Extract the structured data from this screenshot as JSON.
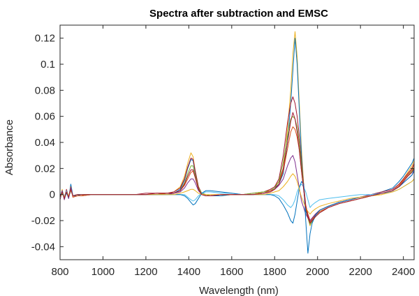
{
  "chart_data": {
    "type": "line",
    "title": "Spectra after subtraction and EMSC",
    "xlabel": "Wavelength (nm)",
    "ylabel": "Absorbance",
    "xlim": [
      800,
      2450
    ],
    "ylim": [
      -0.05,
      0.13
    ],
    "x_ticks": [
      800,
      1000,
      1200,
      1400,
      1600,
      1800,
      2000,
      2200,
      2400
    ],
    "x_tick_labels": [
      "800",
      "1000",
      "1200",
      "1400",
      "1600",
      "1800",
      "2000",
      "2200",
      "2400"
    ],
    "y_ticks": [
      -0.04,
      -0.02,
      0,
      0.02,
      0.04,
      0.06,
      0.08,
      0.1,
      0.12
    ],
    "y_tick_labels": [
      "-0.04",
      "-0.02",
      "0",
      "0.02",
      "0.04",
      "0.06",
      "0.08",
      "0.1",
      "0.12"
    ],
    "grid": false,
    "legend": "none",
    "x": [
      800,
      810,
      820,
      830,
      840,
      850,
      860,
      880,
      900,
      950,
      1000,
      1050,
      1100,
      1150,
      1200,
      1250,
      1300,
      1330,
      1360,
      1380,
      1395,
      1410,
      1420,
      1430,
      1445,
      1460,
      1480,
      1500,
      1550,
      1600,
      1650,
      1700,
      1750,
      1780,
      1800,
      1820,
      1840,
      1860,
      1875,
      1885,
      1895,
      1905,
      1915,
      1925,
      1935,
      1945,
      1955,
      1965,
      1975,
      1990,
      2010,
      2050,
      2100,
      2150,
      2200,
      2250,
      2300,
      2350,
      2380,
      2400,
      2420,
      2440,
      2450
    ],
    "series": [
      {
        "values": [
          -0.003,
          0.004,
          -0.004,
          0.003,
          -0.002,
          0.006,
          -0.002,
          -0.001,
          -0.001,
          0.0,
          0.0,
          0.0,
          0.0,
          0.0,
          0.0,
          0.001,
          0.001,
          0.002,
          0.006,
          0.014,
          0.024,
          0.032,
          0.029,
          0.018,
          0.006,
          0.001,
          0.0,
          -0.001,
          -0.001,
          0.0,
          0.0,
          0.0,
          0.002,
          0.004,
          0.006,
          0.01,
          0.02,
          0.05,
          0.08,
          0.108,
          0.125,
          0.106,
          0.07,
          0.035,
          0.008,
          -0.012,
          -0.018,
          -0.024,
          -0.02,
          -0.016,
          -0.013,
          -0.01,
          -0.007,
          -0.005,
          -0.003,
          -0.001,
          0.0,
          0.003,
          0.007,
          0.012,
          0.017,
          0.022,
          0.026
        ],
        "color": "#EDB120"
      },
      {
        "values": [
          -0.002,
          0.003,
          -0.003,
          0.002,
          -0.003,
          0.008,
          -0.001,
          -0.001,
          0.0,
          0.0,
          0.0,
          0.0,
          0.0,
          0.0,
          0.0,
          0.0,
          0.001,
          0.001,
          0.004,
          0.011,
          0.02,
          0.027,
          0.026,
          0.017,
          0.005,
          0.0,
          -0.001,
          -0.001,
          -0.001,
          0.0,
          0.0,
          0.0,
          0.001,
          0.003,
          0.005,
          0.008,
          0.016,
          0.04,
          0.07,
          0.095,
          0.12,
          0.1,
          0.065,
          0.03,
          0.006,
          -0.013,
          -0.017,
          -0.022,
          -0.019,
          -0.015,
          -0.012,
          -0.009,
          -0.006,
          -0.004,
          -0.002,
          0.0,
          0.002,
          0.005,
          0.01,
          0.014,
          0.019,
          0.024,
          0.028
        ],
        "color": "#0072BD"
      },
      {
        "values": [
          -0.004,
          0.002,
          -0.002,
          0.004,
          -0.002,
          0.005,
          -0.002,
          -0.001,
          -0.001,
          0.0,
          0.0,
          0.0,
          0.0,
          0.0,
          0.001,
          0.001,
          0.001,
          0.002,
          0.005,
          0.012,
          0.021,
          0.028,
          0.027,
          0.018,
          0.006,
          0.001,
          0.0,
          -0.001,
          0.0,
          0.0,
          0.0,
          0.001,
          0.002,
          0.004,
          0.006,
          0.012,
          0.03,
          0.055,
          0.07,
          0.075,
          0.07,
          0.06,
          0.045,
          0.025,
          0.008,
          -0.008,
          -0.015,
          -0.02,
          -0.018,
          -0.015,
          -0.012,
          -0.009,
          -0.006,
          -0.004,
          -0.002,
          0.0,
          0.002,
          0.004,
          0.008,
          0.012,
          0.016,
          0.02,
          0.024
        ],
        "color": "#A2142F"
      },
      {
        "values": [
          -0.002,
          0.001,
          -0.003,
          0.002,
          -0.001,
          0.004,
          -0.001,
          0.0,
          0.0,
          0.0,
          0.0,
          0.0,
          0.0,
          0.0,
          0.0,
          0.0,
          0.001,
          0.001,
          0.003,
          0.009,
          0.016,
          0.022,
          0.022,
          0.015,
          0.005,
          0.001,
          0.0,
          -0.001,
          0.0,
          0.0,
          0.0,
          0.001,
          0.002,
          0.003,
          0.005,
          0.01,
          0.025,
          0.045,
          0.058,
          0.06,
          0.058,
          0.052,
          0.04,
          0.022,
          0.006,
          -0.01,
          -0.018,
          -0.023,
          -0.021,
          -0.017,
          -0.014,
          -0.01,
          -0.007,
          -0.005,
          -0.003,
          -0.001,
          0.001,
          0.003,
          0.006,
          0.01,
          0.014,
          0.018,
          0.021
        ],
        "color": "#77AC30"
      },
      {
        "values": [
          -0.003,
          0.002,
          -0.002,
          0.003,
          -0.002,
          0.006,
          -0.002,
          -0.001,
          -0.001,
          0.0,
          0.0,
          0.0,
          0.0,
          0.0,
          0.0,
          0.0,
          0.001,
          0.001,
          0.003,
          0.007,
          0.012,
          0.017,
          0.018,
          0.013,
          0.004,
          0.0,
          -0.001,
          -0.001,
          0.0,
          0.0,
          0.0,
          0.0,
          0.001,
          0.003,
          0.004,
          0.008,
          0.018,
          0.035,
          0.048,
          0.052,
          0.05,
          0.044,
          0.034,
          0.018,
          0.004,
          -0.009,
          -0.016,
          -0.021,
          -0.019,
          -0.016,
          -0.013,
          -0.01,
          -0.007,
          -0.005,
          -0.003,
          -0.001,
          0.001,
          0.003,
          0.007,
          0.011,
          0.015,
          0.019,
          0.023
        ],
        "color": "#D95319"
      },
      {
        "values": [
          -0.002,
          0.003,
          -0.004,
          0.002,
          -0.003,
          0.005,
          -0.001,
          0.0,
          0.0,
          0.0,
          0.0,
          0.0,
          0.0,
          0.0,
          0.0,
          0.0,
          0.0,
          0.001,
          0.002,
          0.005,
          0.009,
          0.012,
          0.012,
          0.009,
          0.003,
          0.0,
          -0.001,
          -0.001,
          0.0,
          0.0,
          0.0,
          0.0,
          0.001,
          0.002,
          0.004,
          0.007,
          0.012,
          0.022,
          0.028,
          0.03,
          0.025,
          0.015,
          0.005,
          -0.005,
          -0.01,
          -0.015,
          -0.018,
          -0.02,
          -0.018,
          -0.015,
          -0.012,
          -0.009,
          -0.006,
          -0.004,
          -0.002,
          0.0,
          0.001,
          0.003,
          0.006,
          0.009,
          0.012,
          0.015,
          0.018
        ],
        "color": "#7E2F8E"
      },
      {
        "values": [
          -0.003,
          0.002,
          -0.002,
          0.003,
          -0.002,
          0.004,
          -0.001,
          0.0,
          0.0,
          0.0,
          0.0,
          0.0,
          0.0,
          0.0,
          0.0,
          0.0,
          0.0,
          0.0,
          0.0,
          0.0,
          -0.002,
          -0.004,
          -0.005,
          -0.004,
          -0.001,
          0.001,
          0.002,
          0.002,
          0.001,
          0.001,
          0.0,
          0.0,
          0.0,
          0.0,
          0.0,
          -0.001,
          -0.004,
          -0.008,
          -0.01,
          -0.008,
          -0.004,
          0.002,
          0.006,
          0.008,
          0.006,
          0.002,
          -0.004,
          -0.01,
          -0.008,
          -0.006,
          -0.004,
          -0.003,
          -0.002,
          -0.001,
          0.0,
          0.0,
          0.001,
          0.002,
          0.004,
          0.006,
          0.008,
          0.01,
          0.012
        ],
        "color": "#4DBEEE"
      },
      {
        "values": [
          -0.001,
          0.002,
          -0.003,
          0.001,
          -0.002,
          0.003,
          -0.001,
          0.0,
          0.0,
          0.0,
          0.0,
          0.0,
          0.0,
          0.0,
          0.0,
          0.0,
          0.0,
          0.0,
          0.0,
          -0.001,
          -0.003,
          -0.006,
          -0.008,
          -0.007,
          -0.003,
          0.001,
          0.003,
          0.003,
          0.002,
          0.001,
          0.0,
          0.0,
          0.0,
          0.0,
          -0.001,
          -0.003,
          -0.008,
          -0.014,
          -0.02,
          -0.022,
          -0.015,
          -0.005,
          0.005,
          0.01,
          0.008,
          -0.02,
          -0.045,
          -0.03,
          -0.022,
          -0.016,
          -0.012,
          -0.009,
          -0.006,
          -0.004,
          -0.002,
          -0.001,
          0.001,
          0.003,
          0.006,
          0.009,
          0.012,
          0.015,
          0.019
        ],
        "color": "#0072BD"
      },
      {
        "values": [
          -0.002,
          0.001,
          -0.002,
          0.002,
          -0.001,
          0.003,
          -0.001,
          0.0,
          0.0,
          0.0,
          0.0,
          0.0,
          0.0,
          0.0,
          0.0,
          0.0,
          0.0,
          0.0,
          0.001,
          0.002,
          0.003,
          0.004,
          0.004,
          0.003,
          0.001,
          0.0,
          0.0,
          0.0,
          0.0,
          0.0,
          0.0,
          0.0,
          0.0,
          0.001,
          0.002,
          0.003,
          0.006,
          0.01,
          0.014,
          0.016,
          0.014,
          0.01,
          0.004,
          -0.002,
          -0.006,
          -0.01,
          -0.013,
          -0.015,
          -0.013,
          -0.011,
          -0.009,
          -0.007,
          -0.005,
          -0.003,
          -0.002,
          -0.001,
          0.0,
          0.002,
          0.004,
          0.006,
          0.008,
          0.01,
          0.012
        ],
        "color": "#EDB120"
      },
      {
        "values": [
          -0.002,
          0.002,
          -0.003,
          0.002,
          -0.002,
          0.004,
          -0.001,
          0.0,
          0.0,
          0.0,
          0.0,
          0.0,
          0.0,
          0.0,
          0.0,
          0.001,
          0.001,
          0.001,
          0.003,
          0.008,
          0.014,
          0.019,
          0.019,
          0.013,
          0.004,
          0.0,
          -0.001,
          -0.001,
          0.0,
          0.0,
          0.0,
          0.0,
          0.001,
          0.002,
          0.004,
          0.008,
          0.02,
          0.04,
          0.056,
          0.063,
          0.058,
          0.048,
          0.034,
          0.018,
          0.004,
          -0.01,
          -0.017,
          -0.022,
          -0.02,
          -0.017,
          -0.014,
          -0.01,
          -0.007,
          -0.005,
          -0.003,
          -0.001,
          0.001,
          0.003,
          0.006,
          0.01,
          0.014,
          0.017,
          0.02
        ],
        "color": "#A2142F"
      }
    ]
  }
}
